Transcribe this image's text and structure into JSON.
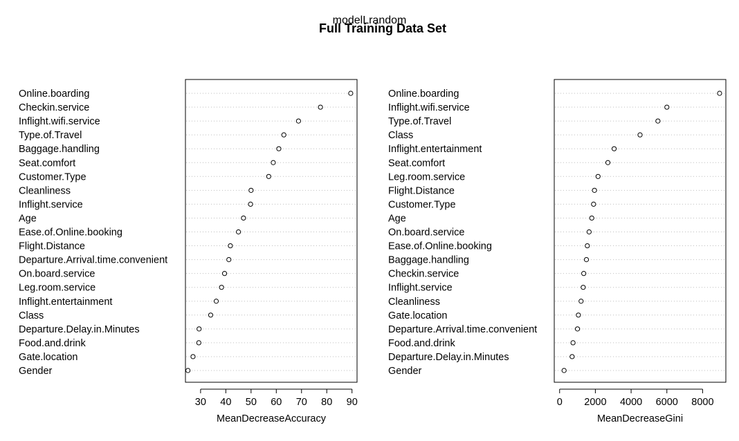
{
  "figure": {
    "title_top": "modelLrandom",
    "title_main": "Full Training Data Set"
  },
  "chart_data": [
    {
      "type": "scatter",
      "subtype": "dotchart",
      "xlabel": "MeanDecreaseAccuracy",
      "xlim": [
        24,
        92
      ],
      "xticks": [
        30,
        40,
        50,
        60,
        70,
        80,
        90
      ],
      "grid": "dotted horizontal guide lines",
      "categories": [
        "Online.boarding",
        "Checkin.service",
        "Inflight.wifi.service",
        "Type.of.Travel",
        "Baggage.handling",
        "Seat.comfort",
        "Customer.Type",
        "Cleanliness",
        "Inflight.service",
        "Age",
        "Ease.of.Online.booking",
        "Flight.Distance",
        "Departure.Arrival.time.convenient",
        "On.board.service",
        "Leg.room.service",
        "Inflight.entertainment",
        "Class",
        "Departure.Delay.in.Minutes",
        "Food.and.drink",
        "Gate.location",
        "Gender"
      ],
      "values": [
        89.5,
        77.5,
        68.8,
        63.0,
        61.0,
        58.8,
        57.0,
        50.0,
        49.8,
        47.0,
        45.0,
        41.8,
        41.2,
        39.5,
        38.3,
        36.2,
        34.0,
        29.4,
        29.3,
        27.0,
        25.0
      ]
    },
    {
      "type": "scatter",
      "subtype": "dotchart",
      "xlabel": "MeanDecreaseGini",
      "xlim": [
        -300,
        9300
      ],
      "xticks": [
        0,
        2000,
        4000,
        6000,
        8000
      ],
      "grid": "dotted horizontal guide lines",
      "categories": [
        "Online.boarding",
        "Inflight.wifi.service",
        "Type.of.Travel",
        "Class",
        "Inflight.entertainment",
        "Seat.comfort",
        "Leg.room.service",
        "Flight.Distance",
        "Customer.Type",
        "Age",
        "On.board.service",
        "Ease.of.Online.booking",
        "Baggage.handling",
        "Checkin.service",
        "Inflight.service",
        "Cleanliness",
        "Gate.location",
        "Departure.Arrival.time.convenient",
        "Food.and.drink",
        "Departure.Delay.in.Minutes",
        "Gender"
      ],
      "values": [
        8950,
        6000,
        5500,
        4500,
        3050,
        2700,
        2150,
        1950,
        1900,
        1800,
        1650,
        1550,
        1500,
        1350,
        1320,
        1200,
        1050,
        1000,
        750,
        700,
        250
      ]
    }
  ]
}
